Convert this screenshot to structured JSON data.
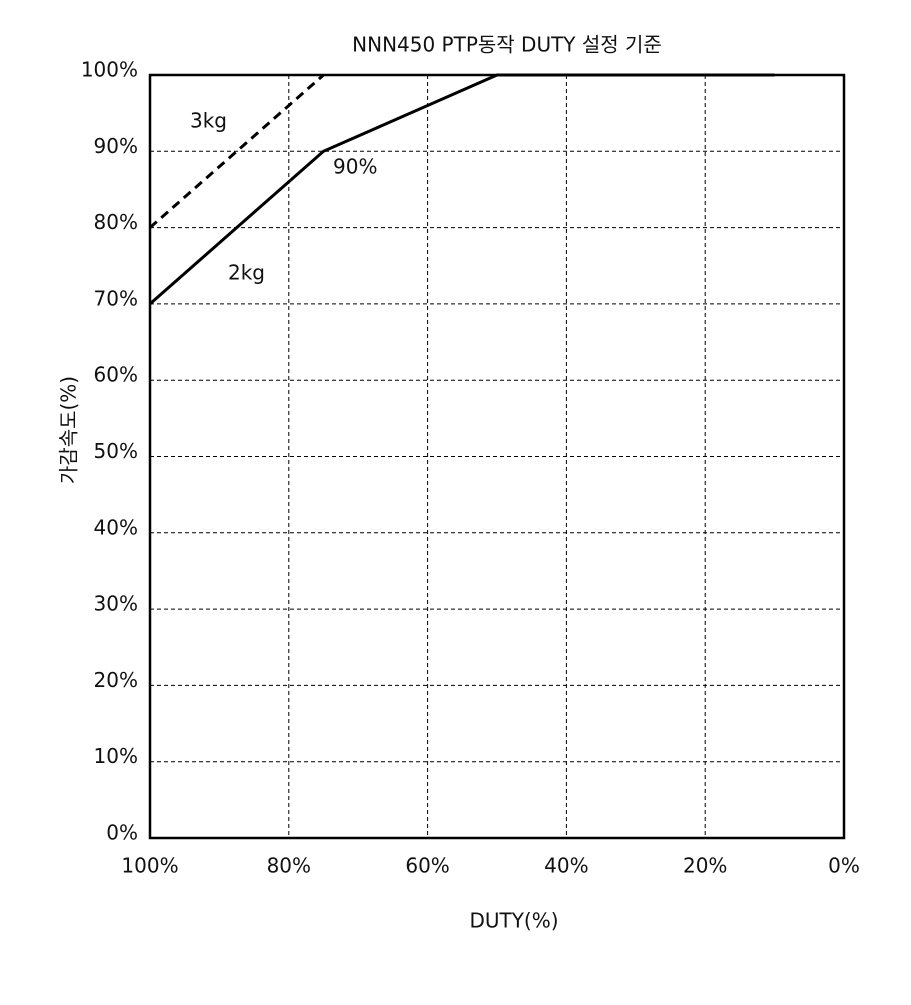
{
  "chart_data": {
    "type": "line",
    "title": "NNN450 PTP동작 DUTY 설정 기준",
    "x_label": "DUTY(%)",
    "y_label": "가감속도(%)",
    "xlim": [
      100,
      0
    ],
    "ylim": [
      0,
      100
    ],
    "xticks": [
      {
        "value": 100,
        "label": "100%"
      },
      {
        "value": 80,
        "label": "80%"
      },
      {
        "value": 60,
        "label": "60%"
      },
      {
        "value": 40,
        "label": "40%"
      },
      {
        "value": 20,
        "label": "20%"
      },
      {
        "value": 0,
        "label": "0%"
      }
    ],
    "yticks": [
      {
        "value": 0,
        "label": "0%"
      },
      {
        "value": 10,
        "label": "10%"
      },
      {
        "value": 20,
        "label": "20%"
      },
      {
        "value": 30,
        "label": "30%"
      },
      {
        "value": 40,
        "label": "40%"
      },
      {
        "value": 50,
        "label": "50%"
      },
      {
        "value": 60,
        "label": "60%"
      },
      {
        "value": 70,
        "label": "70%"
      },
      {
        "value": 80,
        "label": "80%"
      },
      {
        "value": 90,
        "label": "90%"
      },
      {
        "value": 100,
        "label": "100%"
      }
    ],
    "grid": true,
    "series": [
      {
        "name": "2kg",
        "color": "#000000",
        "dashed": false,
        "x": [
          100,
          75,
          50,
          10
        ],
        "values": [
          70,
          90,
          100,
          100
        ]
      },
      {
        "name": "3kg",
        "color": "#000000",
        "dashed": true,
        "x": [
          100,
          75
        ],
        "values": [
          80,
          100
        ]
      }
    ],
    "annotations": [
      "90%"
    ]
  }
}
